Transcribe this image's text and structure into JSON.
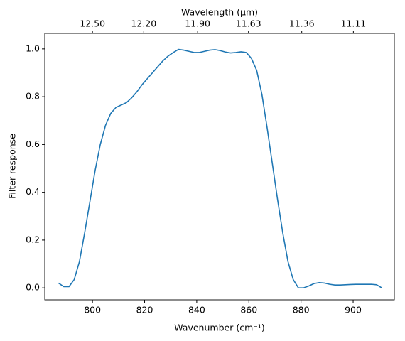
{
  "chart_data": {
    "type": "line",
    "x_label": "Wavenumber (cm⁻¹)",
    "y_label": "Filter response",
    "x2_label": "Wavelength (μm)",
    "x": [
      787,
      789,
      791,
      793,
      795,
      797,
      799,
      801,
      803,
      805,
      807,
      809,
      811,
      813,
      815,
      817,
      819,
      821,
      823,
      825,
      827,
      829,
      831,
      833,
      835,
      837,
      839,
      841,
      843,
      845,
      847,
      849,
      851,
      853,
      855,
      857,
      859,
      861,
      863,
      865,
      867,
      869,
      871,
      873,
      875,
      877,
      879,
      881,
      883,
      885,
      887,
      889,
      891,
      893,
      895,
      897,
      899,
      901,
      903,
      905,
      907,
      909,
      911
    ],
    "series": [
      {
        "color": "#1f77b4",
        "values": [
          0.02,
          0.005,
          0.005,
          0.035,
          0.11,
          0.23,
          0.36,
          0.49,
          0.6,
          0.68,
          0.73,
          0.755,
          0.765,
          0.775,
          0.795,
          0.82,
          0.85,
          0.875,
          0.9,
          0.925,
          0.95,
          0.97,
          0.985,
          0.998,
          0.995,
          0.99,
          0.985,
          0.985,
          0.99,
          0.995,
          0.997,
          0.993,
          0.987,
          0.983,
          0.985,
          0.988,
          0.985,
          0.96,
          0.91,
          0.81,
          0.67,
          0.52,
          0.37,
          0.23,
          0.11,
          0.035,
          0.0,
          0.0,
          0.008,
          0.018,
          0.022,
          0.02,
          0.015,
          0.012,
          0.012,
          0.013,
          0.014,
          0.015,
          0.015,
          0.015,
          0.015,
          0.013,
          0.0
        ]
      }
    ],
    "xlim": [
      781.7,
      915.8
    ],
    "ylim": [
      -0.05,
      1.065
    ],
    "xticks": [
      800,
      820,
      840,
      860,
      880,
      900
    ],
    "yticks": [
      {
        "value": 0,
        "label": "0.0"
      },
      {
        "value": 0.2,
        "label": "0.2"
      },
      {
        "value": 0.4,
        "label": "0.4"
      },
      {
        "value": 0.6,
        "label": "0.6"
      },
      {
        "value": 0.8,
        "label": "0.8"
      },
      {
        "value": 1,
        "label": "1.0"
      }
    ],
    "x2ticks": [
      {
        "value": 12.5,
        "label": "12.50"
      },
      {
        "value": 12.2,
        "label": "12.20"
      },
      {
        "value": 11.9,
        "label": "11.90"
      },
      {
        "value": 11.63,
        "label": "11.63"
      },
      {
        "value": 11.36,
        "label": "11.36"
      },
      {
        "value": 11.11,
        "label": "11.11"
      }
    ]
  }
}
